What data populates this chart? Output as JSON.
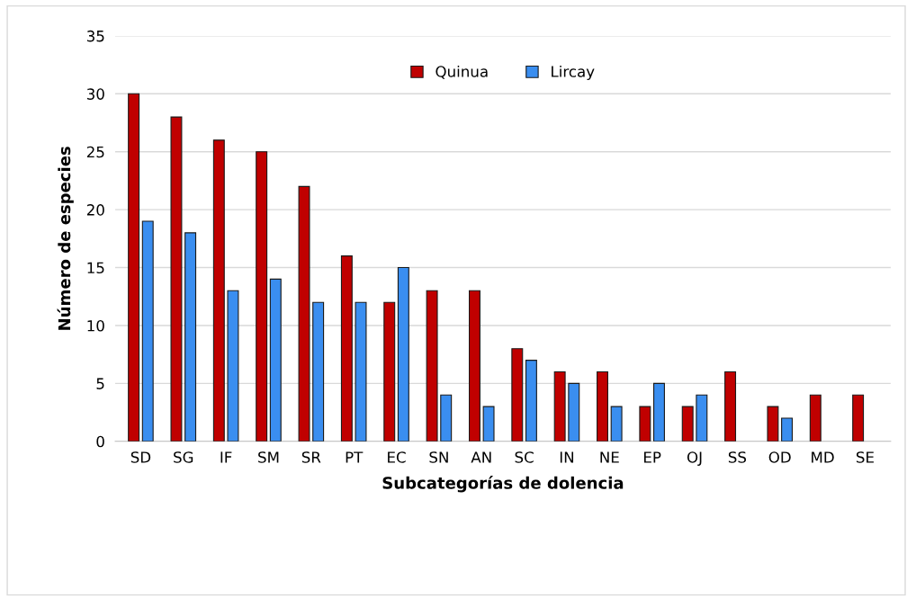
{
  "chart_data": {
    "type": "bar",
    "xlabel": "Subcategorías de dolencia",
    "ylabel": "Número de especies",
    "categories": [
      "SD",
      "SG",
      "IF",
      "SM",
      "SR",
      "PT",
      "EC",
      "SN",
      "AN",
      "SC",
      "IN",
      "NE",
      "EP",
      "OJ",
      "SS",
      "OD",
      "MD",
      "SE"
    ],
    "series": [
      {
        "name": "Quinua",
        "color": "#c00000",
        "values": [
          30,
          28,
          26,
          25,
          22,
          16,
          12,
          13,
          13,
          8,
          6,
          6,
          3,
          3,
          6,
          3,
          4,
          4
        ]
      },
      {
        "name": "Lircay",
        "color": "#3a8ef0",
        "values": [
          19,
          18,
          13,
          14,
          12,
          12,
          15,
          4,
          3,
          7,
          5,
          3,
          5,
          4,
          null,
          2,
          null,
          null
        ]
      }
    ],
    "ylim": [
      0,
      35
    ],
    "yticks": [
      0,
      5,
      10,
      15,
      20,
      25,
      30,
      35
    ],
    "grid": "y",
    "legend": "top"
  }
}
